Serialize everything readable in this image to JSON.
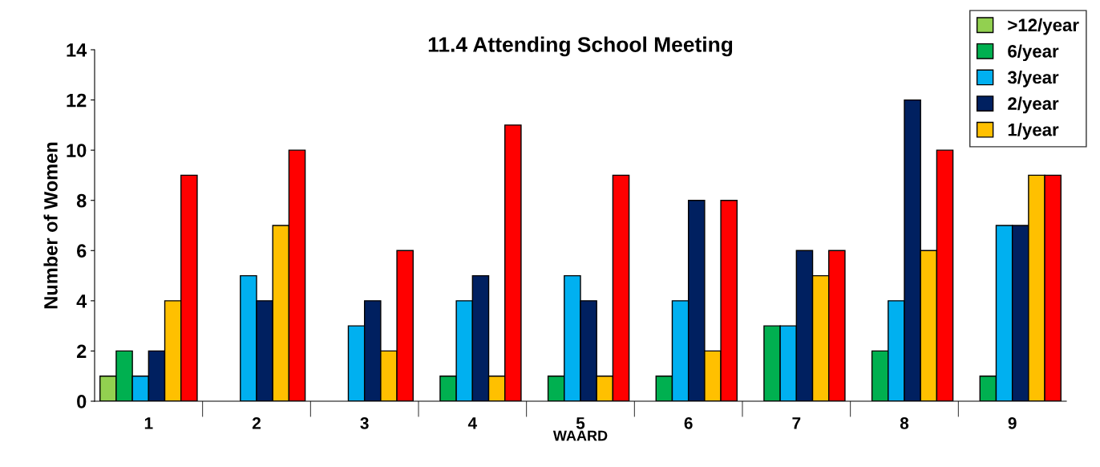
{
  "chart_data": {
    "type": "bar",
    "title": "11.4 Attending School Meeting",
    "xlabel": "WAARD",
    "ylabel": "Number of Women",
    "categories": [
      "1",
      "2",
      "3",
      "4",
      "5",
      "6",
      "7",
      "8",
      "9"
    ],
    "series": [
      {
        "name": ">12/year",
        "color": "#92d050",
        "values": [
          1,
          null,
          null,
          null,
          null,
          null,
          null,
          null,
          null
        ]
      },
      {
        "name": "6/year",
        "color": "#00b050",
        "values": [
          2,
          null,
          null,
          1,
          1,
          1,
          3,
          2,
          1
        ]
      },
      {
        "name": "3/year",
        "color": "#00b0f0",
        "values": [
          1,
          5,
          3,
          4,
          5,
          4,
          3,
          4,
          7
        ]
      },
      {
        "name": "2/year",
        "color": "#002060",
        "values": [
          2,
          4,
          4,
          5,
          4,
          8,
          6,
          12,
          7
        ]
      },
      {
        "name": "1/year",
        "color": "#ffc000",
        "values": [
          4,
          7,
          2,
          1,
          1,
          2,
          5,
          6,
          9
        ]
      },
      {
        "color": "#ff0000",
        "values": [
          9,
          10,
          6,
          11,
          9,
          8,
          6,
          10,
          9
        ]
      }
    ],
    "ylim": [
      0,
      14
    ],
    "yticks": [
      0,
      2,
      4,
      6,
      8,
      10,
      12,
      14
    ],
    "grid": false,
    "legend": "top right"
  }
}
